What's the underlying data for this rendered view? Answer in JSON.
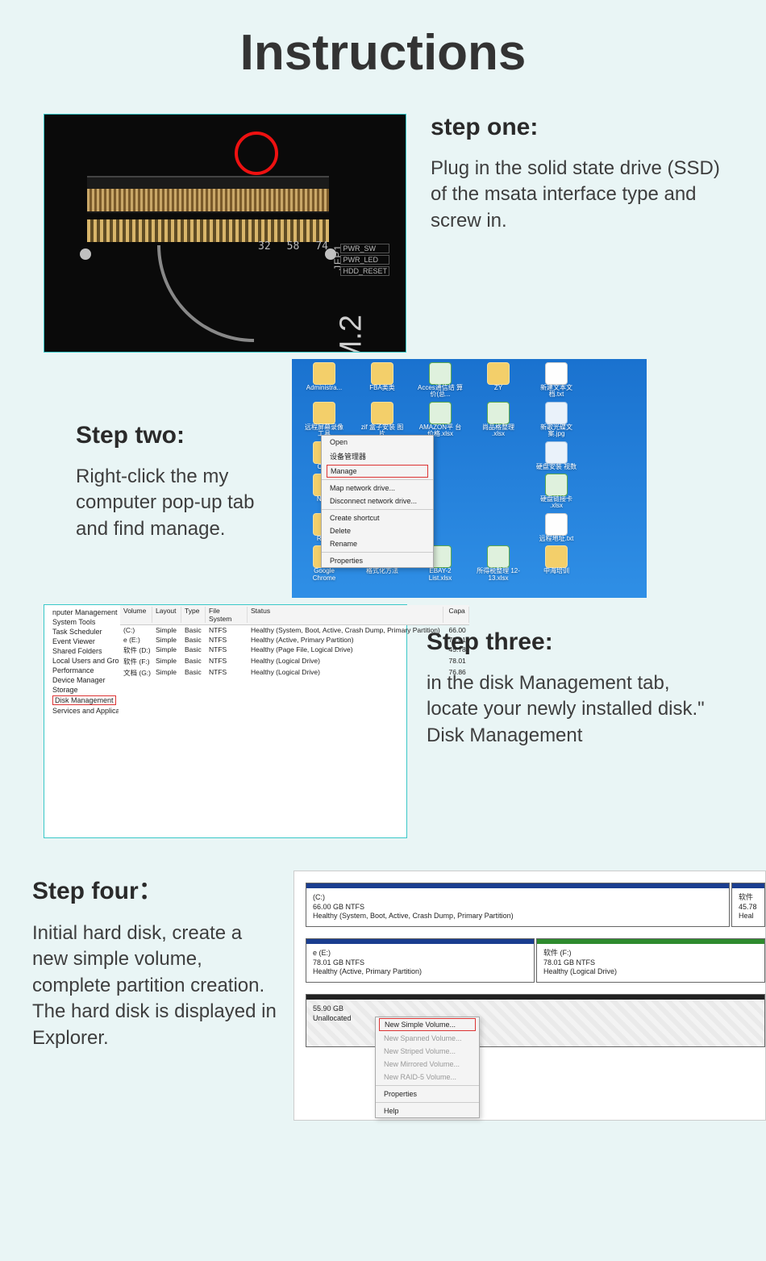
{
  "title": "Instructions",
  "step1": {
    "head": "step one:",
    "body": "Plug in the solid state drive (SSD) of the msata interface type and screw in.",
    "m2": "M.2",
    "nums": [
      "32",
      "58",
      "74"
    ],
    "jfp1": "JFP1",
    "pinlabels": [
      "PWR_SW",
      "PWR_LED",
      "HDD_RESET"
    ]
  },
  "step2": {
    "head": "Step two:",
    "body": "Right-click the my computer pop-up tab and find manage.",
    "icons_row1": [
      "Administra...",
      "FBA类类",
      "Acces通信结 算价(总...",
      "ZY",
      "新建文本文 档.txt",
      ""
    ],
    "icons_row1_type": [
      "folder",
      "folder",
      "xl",
      "folder",
      "txt",
      "blank"
    ],
    "icons_row2": [
      "远程屏幕录像 工具",
      "zif 盒子安装 图片",
      "AMAZON平 台价格.xlsx",
      "尚品格整理 .xlsx",
      "新歌光碟文 案.jpg",
      ""
    ],
    "icons_row2_type": [
      "folder",
      "folder",
      "xl",
      "xl",
      "doc",
      "blank"
    ],
    "icons_row3": [
      "Com",
      "",
      "",
      "",
      "硬盘安装 视数",
      ""
    ],
    "icons_row3_type": [
      "folder",
      "blank",
      "blank",
      "blank",
      "doc",
      "blank"
    ],
    "icons_row4": [
      "Netw",
      "",
      "",
      "",
      "硬盘链接卡 .xlsx",
      ""
    ],
    "icons_row4_type": [
      "folder",
      "blank",
      "blank",
      "blank",
      "xl",
      "blank"
    ],
    "icons_row5": [
      "Recy",
      "",
      "",
      "",
      "远程地址.txt",
      ""
    ],
    "icons_row5_type": [
      "folder",
      "blank",
      "blank",
      "blank",
      "txt",
      "blank"
    ],
    "icons_row6": [
      "Google Chrome",
      "格式化方法",
      "EBAY-2 List.xlsx",
      "所得税整理 12-13.xlsx",
      "中海培训",
      ""
    ],
    "icons_row6_type": [
      "folder",
      "folder",
      "xl",
      "xl",
      "folder",
      "blank"
    ],
    "menu": {
      "open": "Open",
      "devmgr_zh": "设备管理器",
      "manage": "Manage",
      "map": "Map network drive...",
      "disconnect": "Disconnect network drive...",
      "shortcut": "Create shortcut",
      "delete": "Delete",
      "rename": "Rename",
      "props": "Properties"
    }
  },
  "step3": {
    "head": "Step three:",
    "body": "in the disk Management tab, locate your newly installed disk.\" Disk Management",
    "tree": {
      "root": "nputer Management (Local",
      "systools": "System Tools",
      "items": [
        "Task Scheduler",
        "Event Viewer",
        "Shared Folders",
        "Local Users and Groups",
        "Performance",
        "Device Manager"
      ],
      "storage": "Storage",
      "diskmgmt": "Disk Management",
      "services": "Services and Applications"
    },
    "table": {
      "headers": [
        "Volume",
        "Layout",
        "Type",
        "File System",
        "Status",
        "Capa"
      ],
      "rows": [
        [
          "(C:)",
          "Simple",
          "Basic",
          "NTFS",
          "Healthy (System, Boot, Active, Crash Dump, Primary Partition)",
          "66.00"
        ],
        [
          "e (E:)",
          "Simple",
          "Basic",
          "NTFS",
          "Healthy (Active, Primary Partition)",
          "78.01"
        ],
        [
          "软件 (D:)",
          "Simple",
          "Basic",
          "NTFS",
          "Healthy (Page File, Logical Drive)",
          "45.78"
        ],
        [
          "软件 (F:)",
          "Simple",
          "Basic",
          "NTFS",
          "Healthy (Logical Drive)",
          "78.01"
        ],
        [
          "文档 (G:)",
          "Simple",
          "Basic",
          "NTFS",
          "Healthy (Logical Drive)",
          "76.86"
        ]
      ]
    }
  },
  "step4": {
    "head": "Step four：",
    "body1": "Initial hard disk, create a new simple volume, complete partition creation.",
    "body2": "The hard disk is displayed in Explorer.",
    "partitions": {
      "c": {
        "name": "(C:)",
        "size": "66.00 GB NTFS",
        "status": "Healthy (System, Boot, Active, Crash Dump, Primary Partition)"
      },
      "d1": {
        "name": "软件",
        "size": "45.78",
        "status": "Heal"
      },
      "e": {
        "name": "e (E:)",
        "size": "78.01 GB NTFS",
        "status": "Healthy (Active, Primary Partition)"
      },
      "f": {
        "name": "软件 (F:)",
        "size": "78.01 GB NTFS",
        "status": "Healthy (Logical Drive)"
      },
      "un": {
        "size": "55.90 GB",
        "status": "Unallocated"
      }
    },
    "menu": {
      "nsv": "New Simple Volume...",
      "span": "New Spanned Volume...",
      "stripe": "New Striped Volume...",
      "mirror": "New Mirrored Volume...",
      "raid": "New RAID-5 Volume...",
      "props": "Properties",
      "help": "Help"
    }
  }
}
